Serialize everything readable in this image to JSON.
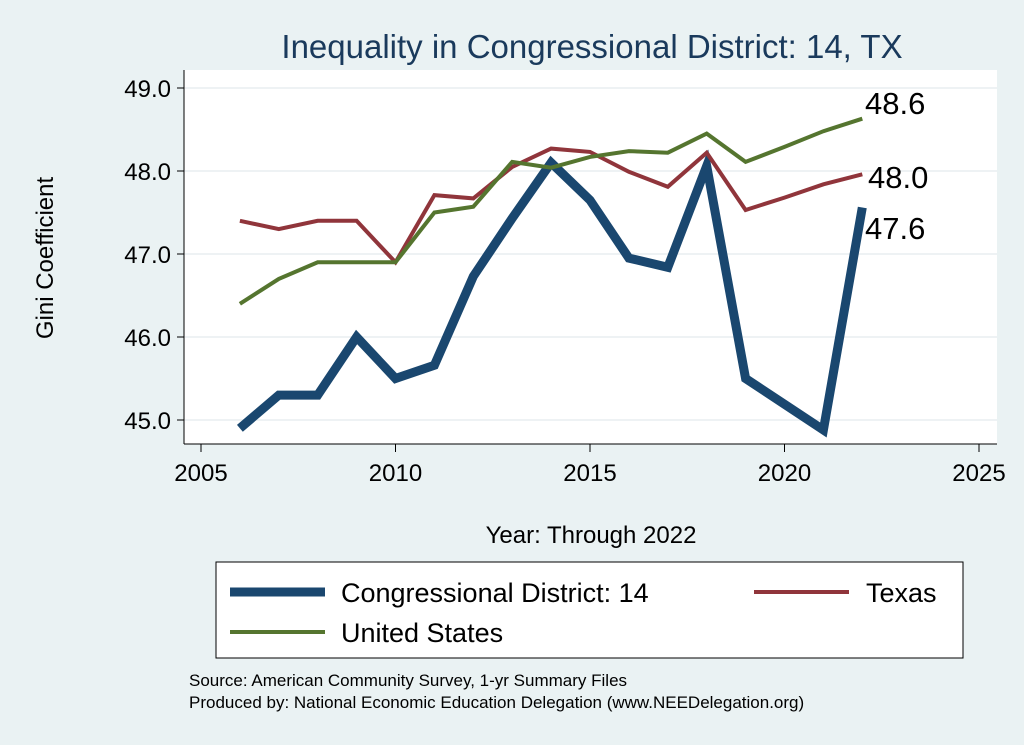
{
  "chart_data": {
    "type": "line",
    "title": "Inequality in Congressional District:  14, TX",
    "xlabel": "Year: Through 2022",
    "ylabel": "Gini Coefficient",
    "xlim": [
      2005,
      2025
    ],
    "ylim": [
      44.8,
      49.2
    ],
    "x_ticks": [
      2005,
      2010,
      2015,
      2020,
      2025
    ],
    "y_ticks": [
      45.0,
      46.0,
      47.0,
      48.0,
      49.0
    ],
    "x_tick_labels": [
      "2005",
      "2010",
      "2015",
      "2020",
      "2025"
    ],
    "y_tick_labels": [
      "45.0",
      "46.0",
      "47.0",
      "48.0",
      "49.0"
    ],
    "grid": true,
    "legend_position": "bottom",
    "series": [
      {
        "name": "Congressional District:  14",
        "color": "#1a476f",
        "x": [
          2006,
          2007,
          2008,
          2009,
          2010,
          2011,
          2012,
          2013,
          2014,
          2015,
          2016,
          2017,
          2018,
          2019,
          2020,
          2021,
          2022
        ],
        "y": [
          44.9,
          45.3,
          45.3,
          46.0,
          45.5,
          45.66,
          46.73,
          47.43,
          48.1,
          47.65,
          46.95,
          46.84,
          48.06,
          45.5,
          45.19,
          44.88,
          47.56
        ],
        "end_label": "47.6"
      },
      {
        "name": "Texas",
        "color": "#90353b",
        "x": [
          2006,
          2007,
          2008,
          2009,
          2010,
          2011,
          2012,
          2013,
          2014,
          2015,
          2016,
          2017,
          2018,
          2019,
          2020,
          2021,
          2022
        ],
        "y": [
          47.4,
          47.3,
          47.4,
          47.4,
          46.9,
          47.71,
          47.67,
          48.05,
          48.27,
          48.23,
          47.99,
          47.81,
          48.22,
          47.53,
          47.68,
          47.84,
          47.96
        ],
        "end_label": "48.0"
      },
      {
        "name": "United States",
        "color": "#55752f",
        "x": [
          2006,
          2007,
          2008,
          2009,
          2010,
          2011,
          2012,
          2013,
          2014,
          2015,
          2016,
          2017,
          2018,
          2019,
          2020,
          2021,
          2022
        ],
        "y": [
          46.4,
          46.7,
          46.9,
          46.9,
          46.9,
          47.5,
          47.57,
          48.11,
          48.04,
          48.17,
          48.24,
          48.22,
          48.45,
          48.11,
          48.29,
          48.48,
          48.63
        ],
        "end_label": "48.6"
      }
    ],
    "notes": [
      "Source: American Community Survey, 1-yr Summary Files",
      "Produced by: National Economic Education Delegation (www.NEEDelegation.org)"
    ]
  }
}
